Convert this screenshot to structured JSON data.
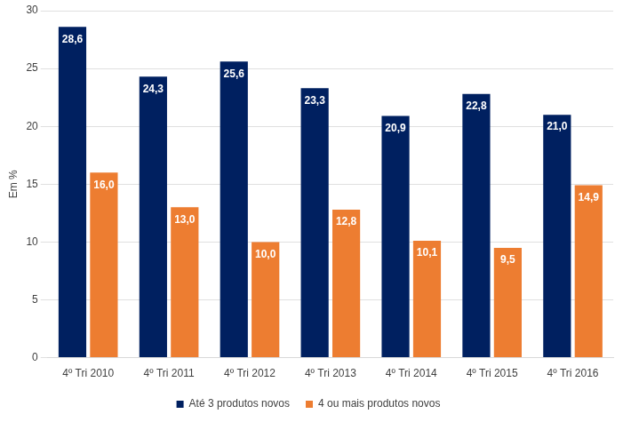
{
  "chart_data": {
    "type": "bar",
    "y_label": "Em %",
    "categories": [
      "4º Tri 2010",
      "4º Tri 2011",
      "4º Tri 2012",
      "4º Tri 2013",
      "4º Tri 2014",
      "4º Tri 2015",
      "4º Tri 2016"
    ],
    "series": [
      {
        "name": "Até 3 produtos novos",
        "color": "#002060",
        "values": [
          28.6,
          24.3,
          25.6,
          23.3,
          20.9,
          22.8,
          21.0
        ],
        "value_labels": [
          "28,6",
          "24,3",
          "25,6",
          "23,3",
          "20,9",
          "22,8",
          "21,0"
        ]
      },
      {
        "name": "4 ou mais produtos novos",
        "color": "#ED7D31",
        "values": [
          16.0,
          13.0,
          10.0,
          12.8,
          10.1,
          9.5,
          14.9
        ],
        "value_labels": [
          "16,0",
          "13,0",
          "10,0",
          "12,8",
          "10,1",
          "9,5",
          "14,9"
        ]
      }
    ],
    "ylim": [
      0,
      30
    ],
    "yticks": [
      0,
      5,
      10,
      15,
      20,
      25,
      30
    ],
    "grid": true,
    "legend": "bottom",
    "data_labels": true
  }
}
